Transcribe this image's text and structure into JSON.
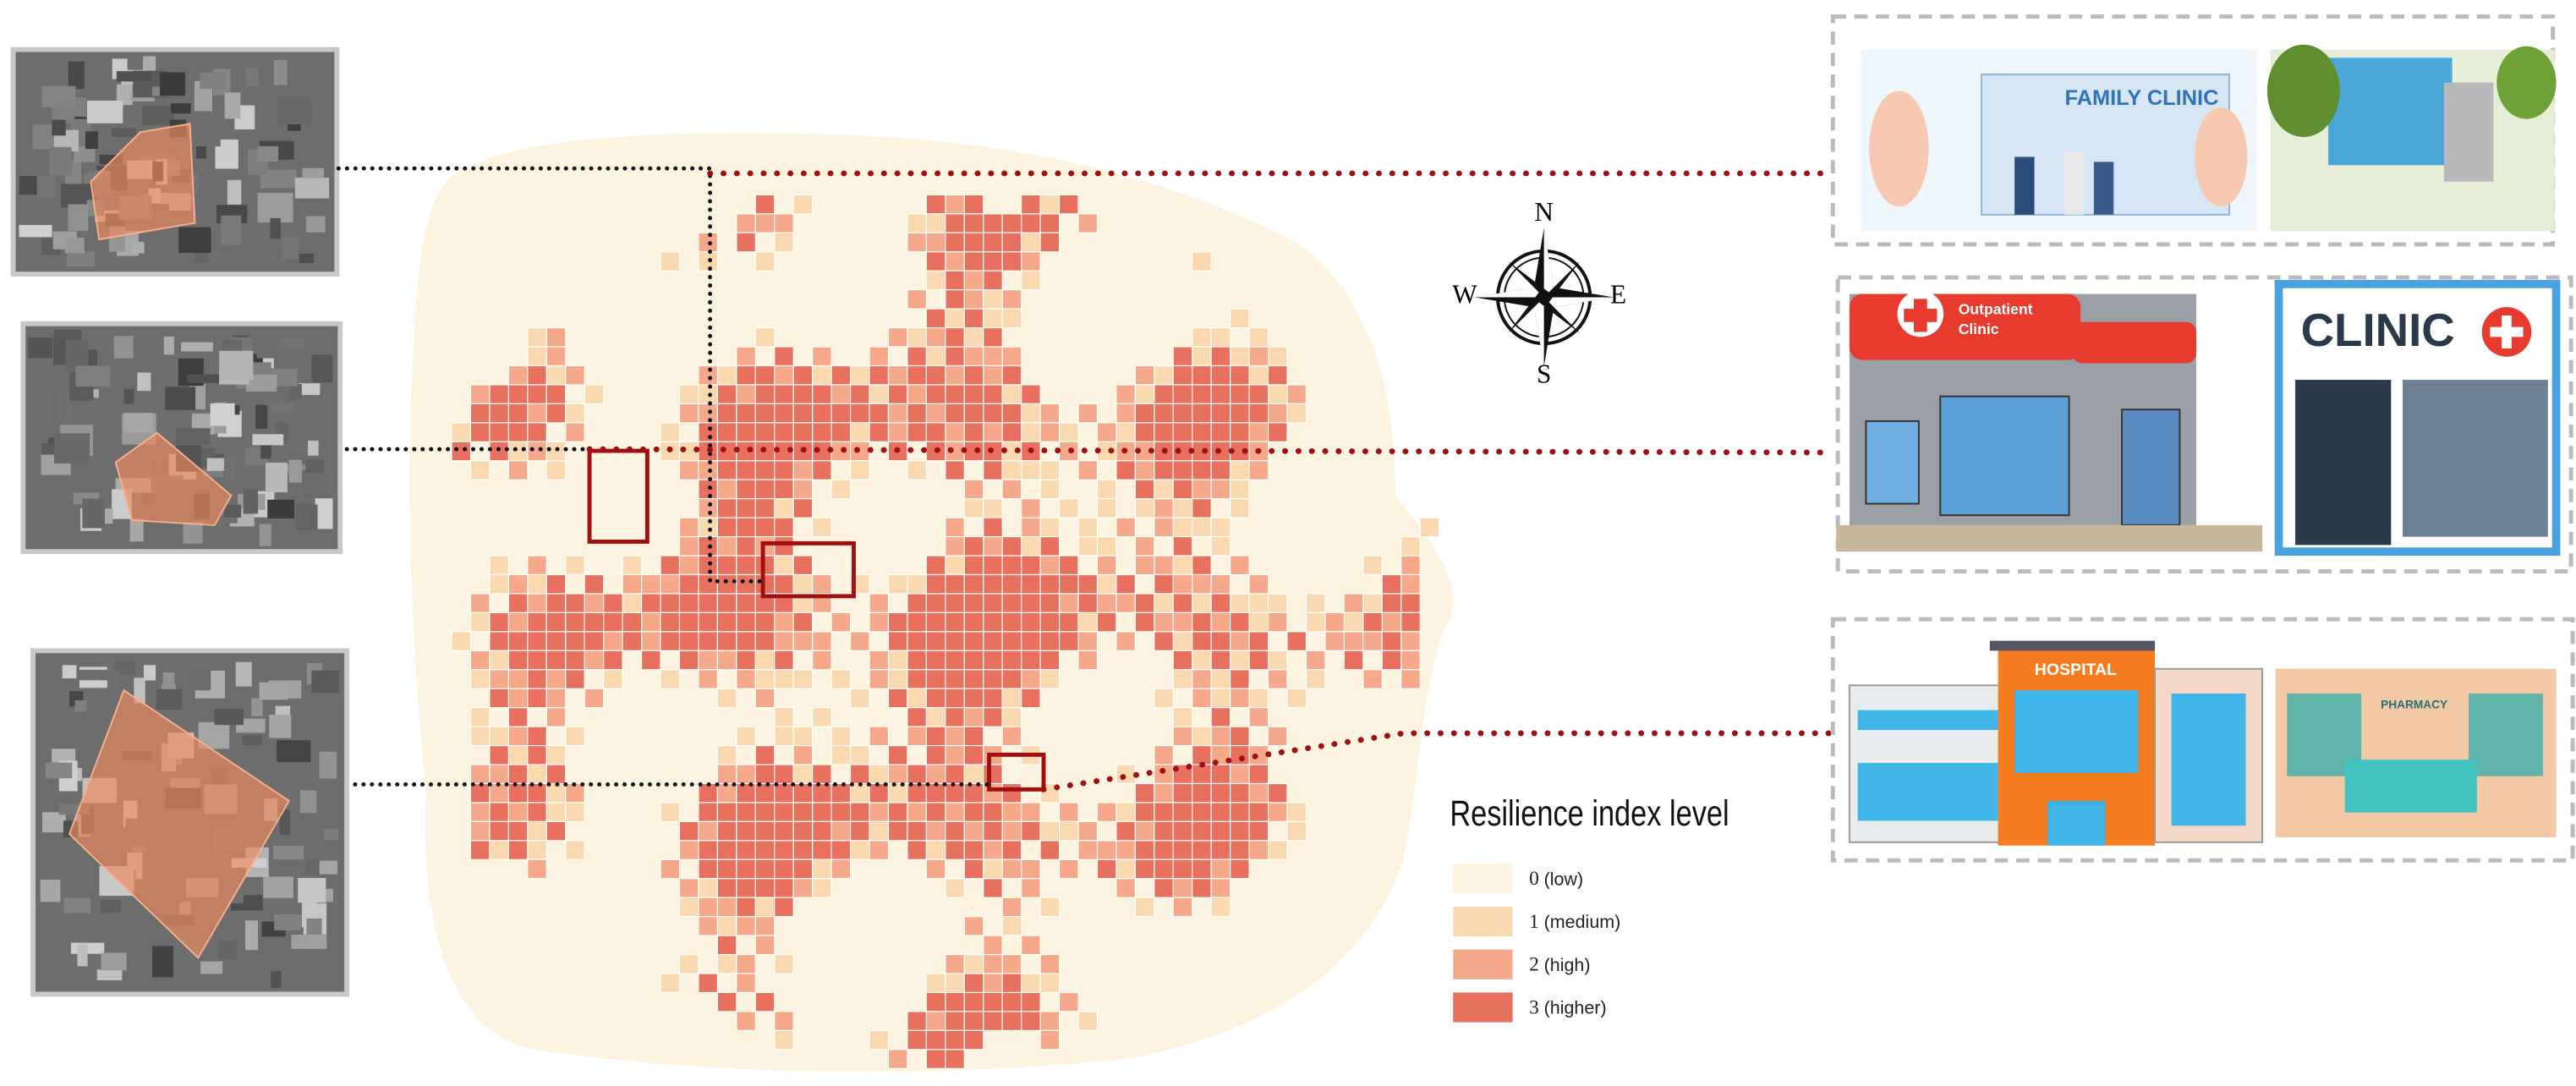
{
  "compass": {
    "north": "N",
    "south": "S",
    "east": "E",
    "west": "W"
  },
  "legend": {
    "title": "Resilience index level",
    "items": [
      {
        "level": "0",
        "label": "(low)",
        "color": "#fdf3e1"
      },
      {
        "level": "1",
        "label": "(medium)",
        "color": "#fbd9b0"
      },
      {
        "level": "2",
        "label": "(high)",
        "color": "#f6a98a"
      },
      {
        "level": "3",
        "label": "(higher)",
        "color": "#e8705f"
      }
    ]
  },
  "panels": [
    {
      "labels": [
        "FAMILY CLINIC"
      ]
    },
    {
      "labels": [
        "Outpatient",
        "Clinic",
        "CLINIC"
      ]
    },
    {
      "labels": [
        "HOSPITAL",
        "PHARMACY"
      ]
    }
  ]
}
